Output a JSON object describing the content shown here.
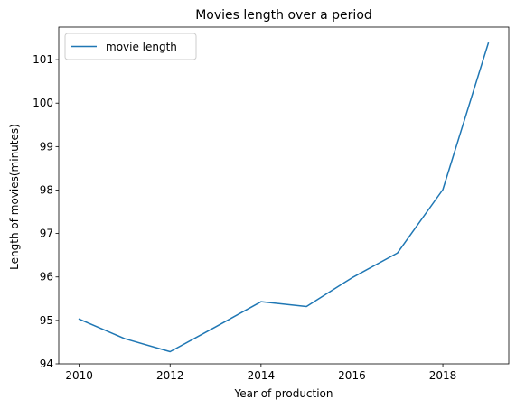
{
  "chart_data": {
    "type": "line",
    "title": "Movies length over a period",
    "xlabel": "Year of production",
    "ylabel": "Length of movies(minutes)",
    "x": [
      2010,
      2011,
      2012,
      2013,
      2014,
      2015,
      2016,
      2017,
      2018,
      2019
    ],
    "series": [
      {
        "name": "movie length",
        "color": "#1f77b4",
        "values": [
          95.03,
          94.58,
          94.28,
          94.85,
          95.43,
          95.32,
          95.98,
          96.55,
          98.01,
          101.38
        ]
      }
    ],
    "xticks": [
      "2010",
      "2012",
      "2014",
      "2016",
      "2018"
    ],
    "yticks": [
      "94",
      "95",
      "96",
      "97",
      "98",
      "99",
      "100",
      "101"
    ],
    "xlim": [
      2009.55,
      2019.45
    ],
    "ylim": [
      94.0,
      101.75
    ],
    "grid": false,
    "legend_position": "top-left"
  }
}
